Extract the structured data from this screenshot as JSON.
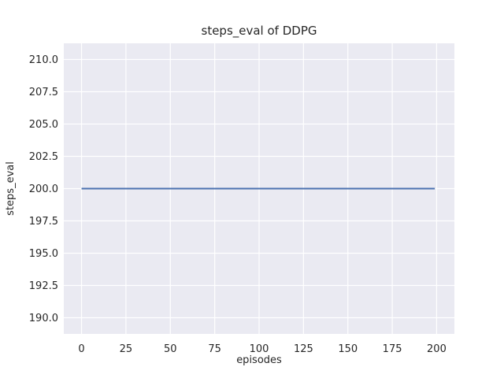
{
  "chart_data": {
    "type": "line",
    "title": "steps_eval of DDPG",
    "xlabel": "episodes",
    "ylabel": "steps_eval",
    "xlim": [
      -10,
      210
    ],
    "ylim": [
      188.75,
      211.25
    ],
    "xticks": [
      0,
      25,
      50,
      75,
      100,
      125,
      150,
      175,
      200
    ],
    "xtick_labels": [
      "0",
      "25",
      "50",
      "75",
      "100",
      "125",
      "150",
      "175",
      "200"
    ],
    "yticks": [
      190.0,
      192.5,
      195.0,
      197.5,
      200.0,
      202.5,
      205.0,
      207.5,
      210.0
    ],
    "ytick_labels": [
      "190.0",
      "192.5",
      "195.0",
      "197.5",
      "200.0",
      "202.5",
      "205.0",
      "207.5",
      "210.0"
    ],
    "grid": true,
    "legend": null,
    "colors": {
      "figure_bg": "#ffffff",
      "plot_bg": "#eaeaf2",
      "grid": "#ffffff",
      "text": "#262626",
      "line": "#4c72b0"
    },
    "series": [
      {
        "name": "steps_eval",
        "color": "#4c72b0",
        "x": [
          0,
          199
        ],
        "y": [
          200,
          200
        ]
      }
    ]
  }
}
